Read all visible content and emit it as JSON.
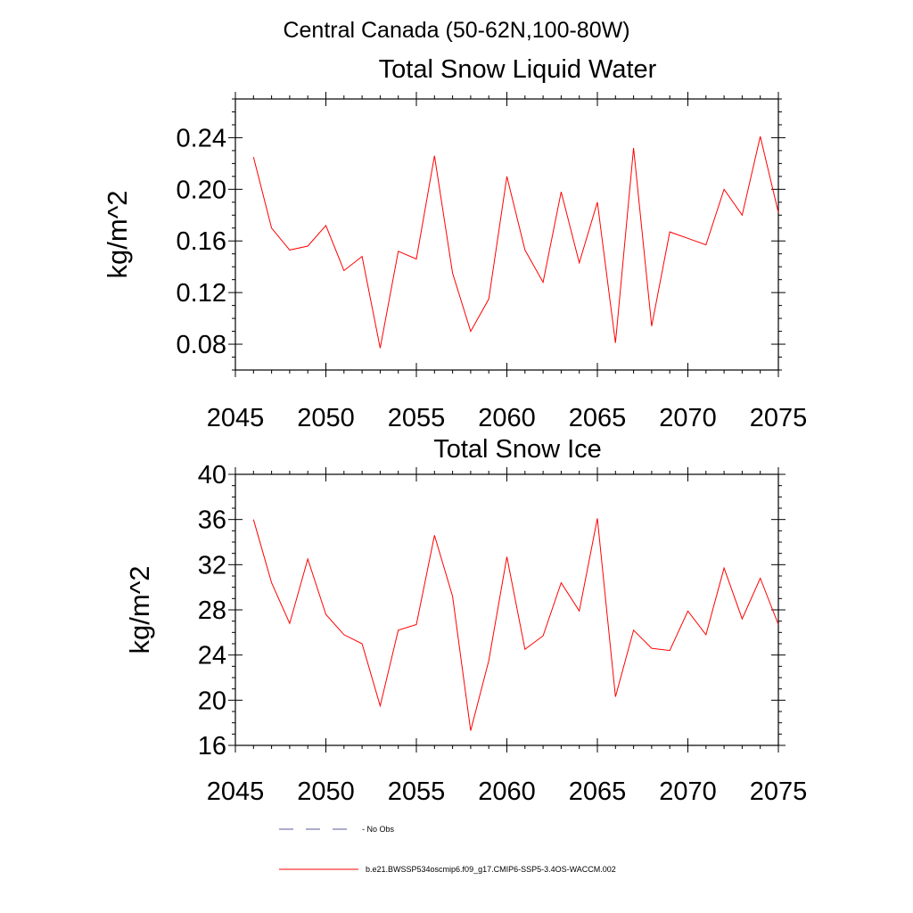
{
  "figure": {
    "main_title": "Central Canada (50-62N,100-80W)"
  },
  "chart_data": [
    {
      "type": "line",
      "title": "Total Snow Liquid Water",
      "xlabel": "",
      "ylabel": "kg/m^2",
      "xlim": [
        2045,
        2075
      ],
      "ylim": [
        0.06,
        0.27
      ],
      "x_ticks": [
        2045,
        2050,
        2055,
        2060,
        2065,
        2070,
        2075
      ],
      "y_ticks": [
        0.08,
        0.12,
        0.16,
        0.2,
        0.24
      ],
      "y_tick_labels": [
        "0.08",
        "0.12",
        "0.16",
        "0.20",
        "0.24"
      ],
      "x_minor_step": 1,
      "y_minor_step": 0.01,
      "grid": false,
      "x": [
        2046,
        2047,
        2048,
        2049,
        2050,
        2051,
        2052,
        2053,
        2054,
        2055,
        2056,
        2057,
        2058,
        2059,
        2060,
        2061,
        2062,
        2063,
        2064,
        2065,
        2066,
        2067,
        2068,
        2069,
        2070,
        2071,
        2072,
        2073,
        2074,
        2075
      ],
      "series": [
        {
          "name": "b.e21.BWSSP534oscmip6.f09_g17.CMIP6-SSP5-3.4OS-WACCM.002",
          "color": "#ff0000",
          "values": [
            0.225,
            0.17,
            0.153,
            0.156,
            0.172,
            0.137,
            0.148,
            0.077,
            0.152,
            0.146,
            0.226,
            0.135,
            0.09,
            0.115,
            0.21,
            0.153,
            0.128,
            0.198,
            0.143,
            0.19,
            0.081,
            0.232,
            0.094,
            0.167,
            0.162,
            0.157,
            0.2,
            0.18,
            0.241,
            0.182
          ]
        }
      ]
    },
    {
      "type": "line",
      "title": "Total Snow Ice",
      "xlabel": "",
      "ylabel": "kg/m^2",
      "xlim": [
        2045,
        2075
      ],
      "ylim": [
        16,
        40
      ],
      "x_ticks": [
        2045,
        2050,
        2055,
        2060,
        2065,
        2070,
        2075
      ],
      "y_ticks": [
        16,
        20,
        24,
        28,
        32,
        36,
        40
      ],
      "y_tick_labels": [
        "16",
        "20",
        "24",
        "28",
        "32",
        "36",
        "40"
      ],
      "x_minor_step": 1,
      "y_minor_step": 1,
      "grid": false,
      "x": [
        2046,
        2047,
        2048,
        2049,
        2050,
        2051,
        2052,
        2053,
        2054,
        2055,
        2056,
        2057,
        2058,
        2059,
        2060,
        2061,
        2062,
        2063,
        2064,
        2065,
        2066,
        2067,
        2068,
        2069,
        2070,
        2071,
        2072,
        2073,
        2074,
        2075
      ],
      "series": [
        {
          "name": "b.e21.BWSSP534oscmip6.f09_g17.CMIP6-SSP5-3.4OS-WACCM.002",
          "color": "#ff0000",
          "values": [
            36.0,
            30.4,
            26.8,
            32.5,
            27.6,
            25.8,
            25.0,
            19.5,
            26.2,
            26.7,
            34.6,
            29.2,
            17.3,
            23.5,
            32.7,
            24.5,
            25.7,
            30.4,
            27.9,
            36.1,
            20.3,
            26.2,
            24.6,
            24.4,
            27.9,
            25.8,
            31.7,
            27.2,
            30.8,
            26.7
          ]
        }
      ]
    }
  ],
  "legend": {
    "placement": "bottom",
    "entries": [
      {
        "label": "No Obs",
        "color": "#5a5a9a",
        "dash": "dashed"
      },
      {
        "label": "b.e21.BWSSP534oscmip6.f09_g17.CMIP6-SSP5-3.4OS-WACCM.002",
        "color": "#ff0000",
        "dash": "solid"
      }
    ]
  }
}
